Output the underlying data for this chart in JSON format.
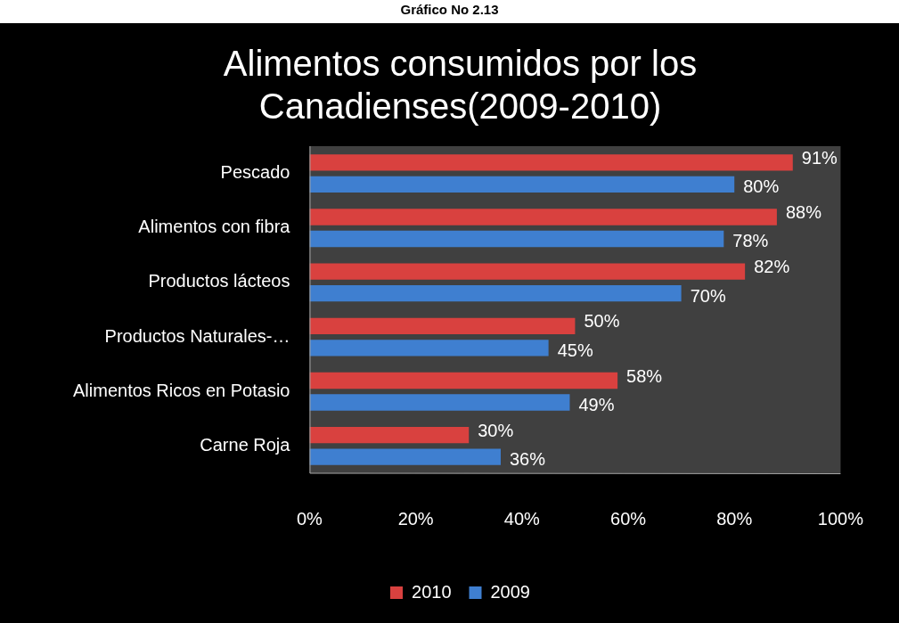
{
  "chart_data": {
    "type": "bar",
    "orientation": "horizontal",
    "title": "Alimentos consumidos por los Canadienses(2009-2010)",
    "annotations": [
      "Gráfico No 2.13"
    ],
    "categories": [
      "Pescado",
      "Alimentos con fibra",
      "Productos lácteos",
      "Productos Naturales-…",
      "Alimentos Ricos en Potasio",
      "Carne Roja"
    ],
    "series": [
      {
        "name": "2010",
        "color": "#d9413f",
        "values": [
          91,
          88,
          82,
          50,
          58,
          30
        ],
        "value_labels": [
          "91%",
          "88%",
          "82%",
          "50%",
          "58%",
          "30%"
        ]
      },
      {
        "name": "2009",
        "color": "#3f7fd0",
        "values": [
          80,
          78,
          70,
          45,
          49,
          36
        ],
        "value_labels": [
          "80%",
          "78%",
          "70%",
          "45%",
          "49%",
          "36%"
        ]
      }
    ],
    "xlim": [
      0,
      100
    ],
    "xticks": [
      {
        "value": 0,
        "label": "0%"
      },
      {
        "value": 20,
        "label": "20%"
      },
      {
        "value": 40,
        "label": "40%"
      },
      {
        "value": 60,
        "label": "60%"
      },
      {
        "value": 80,
        "label": "80%"
      },
      {
        "value": 100,
        "label": "100%"
      }
    ],
    "grid": false,
    "legend": "bottom"
  }
}
